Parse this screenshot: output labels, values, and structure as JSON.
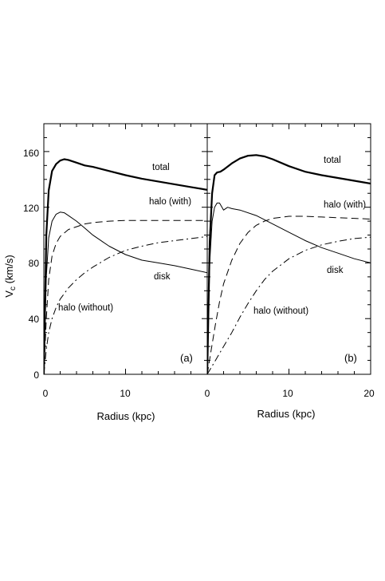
{
  "figure": {
    "ylabel_main": "V",
    "ylabel_sub": "c",
    "ylabel_units": " (km/s)"
  },
  "chart_data": [
    {
      "type": "line",
      "panel_label": "(a)",
      "xlabel": "Radius (kpc)",
      "ylabel": "V_c (km/s)",
      "xlim": [
        0,
        20
      ],
      "ylim": [
        0,
        180
      ],
      "xticks": [
        0,
        10
      ],
      "yticks": [
        0,
        40,
        80,
        120,
        160
      ],
      "series": [
        {
          "name": "total",
          "style": "solid-thick",
          "x": [
            0,
            0.3,
            0.6,
            1,
            1.5,
            2,
            2.5,
            3,
            4,
            5,
            6,
            8,
            10,
            12,
            14,
            16,
            18,
            20
          ],
          "y": [
            0,
            100,
            132,
            146,
            151,
            153.5,
            154.5,
            154,
            152,
            150,
            149,
            146,
            143,
            140.5,
            138.5,
            136.5,
            134.5,
            132.5
          ]
        },
        {
          "name": "disk",
          "style": "solid",
          "x": [
            0,
            0.3,
            0.6,
            1,
            1.5,
            2,
            2.5,
            3,
            4,
            5,
            6,
            8,
            10,
            12,
            14,
            16,
            18,
            20
          ],
          "y": [
            0,
            70,
            98,
            110,
            115,
            116.5,
            116,
            114,
            110,
            105,
            100,
            92,
            86,
            82,
            80,
            78,
            75.5,
            73
          ]
        },
        {
          "name": "halo (with)",
          "style": "dashed",
          "x": [
            0,
            0.3,
            0.6,
            1,
            1.5,
            2,
            3,
            4,
            5,
            6,
            8,
            10,
            12,
            14,
            16,
            18,
            20
          ],
          "y": [
            0,
            40,
            68,
            85,
            94,
            99,
            104,
            106,
            108,
            109,
            110,
            110.5,
            110.5,
            110.5,
            110.5,
            110.5,
            110.5
          ]
        },
        {
          "name": "halo (without)",
          "style": "dash-dot",
          "x": [
            0,
            0.3,
            0.6,
            1,
            1.5,
            2,
            3,
            4,
            5,
            6,
            8,
            10,
            12,
            14,
            16,
            18,
            20
          ],
          "y": [
            0,
            18,
            30,
            40,
            48,
            54,
            62,
            68,
            73,
            77,
            84,
            89,
            92,
            94.5,
            96,
            97.5,
            99
          ]
        }
      ],
      "annotations": [
        "total",
        "halo (with)",
        "disk",
        "halo (without)"
      ]
    },
    {
      "type": "line",
      "panel_label": "(b)",
      "xlabel": "Radius (kpc)",
      "ylabel": "V_c (km/s)",
      "xlim": [
        0,
        20
      ],
      "ylim": [
        0,
        180
      ],
      "xticks": [
        0,
        10,
        20
      ],
      "yticks": [
        0,
        40,
        80,
        120,
        160
      ],
      "series": [
        {
          "name": "total",
          "style": "solid-thick",
          "x": [
            0,
            0.3,
            0.6,
            0.9,
            1.2,
            1.6,
            2,
            3,
            4,
            5,
            6,
            7,
            8,
            10,
            12,
            14,
            16,
            18,
            20
          ],
          "y": [
            0,
            95,
            130,
            143,
            145,
            145.5,
            147,
            151.5,
            155,
            157,
            157.5,
            156.5,
            154.5,
            149.5,
            145.5,
            143,
            141,
            139,
            137
          ]
        },
        {
          "name": "disk",
          "style": "solid",
          "x": [
            0,
            0.3,
            0.6,
            0.9,
            1.2,
            1.5,
            2,
            2.5,
            3,
            4,
            6,
            8,
            10,
            12,
            14,
            16,
            18,
            20
          ],
          "y": [
            0,
            80,
            110,
            120,
            123,
            123,
            118,
            120,
            119,
            118,
            114,
            108,
            102,
            96,
            91,
            87,
            83,
            80
          ]
        },
        {
          "name": "halo (with)",
          "style": "dashed",
          "x": [
            0,
            0.5,
            1,
            1.5,
            2,
            3,
            4,
            5,
            6,
            7,
            8,
            10,
            12,
            14,
            16,
            18,
            20
          ],
          "y": [
            0,
            18,
            36,
            52,
            65,
            82,
            94,
            102,
            107,
            110,
            112,
            113.5,
            113.5,
            113,
            112.5,
            112,
            111.5
          ]
        },
        {
          "name": "halo (without)",
          "style": "dash-dot",
          "x": [
            0,
            1,
            2,
            3,
            4,
            5,
            6,
            7,
            8,
            10,
            12,
            14,
            16,
            18,
            20
          ],
          "y": [
            0,
            10,
            20,
            30,
            41,
            51,
            60,
            68,
            74,
            83,
            89,
            93,
            95.5,
            97.5,
            98.5
          ]
        }
      ],
      "annotations": [
        "total",
        "halo (with)",
        "disk",
        "halo (without)"
      ]
    }
  ]
}
